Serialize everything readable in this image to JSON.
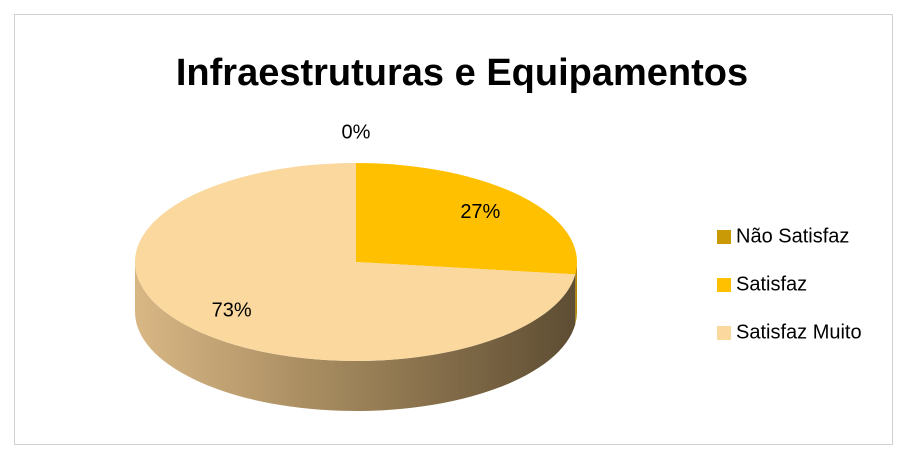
{
  "chart_data": {
    "type": "pie",
    "title": "Infraestruturas e Equipamentos",
    "categories": [
      "Não Satisfaz",
      "Satisfaz",
      "Satisfaz Muito"
    ],
    "values": [
      0,
      27,
      73
    ],
    "value_labels": [
      "0%",
      "27%",
      "73%"
    ],
    "colors": [
      "#c99a06",
      "#ffc000",
      "#fad89e"
    ],
    "legend": "right"
  }
}
